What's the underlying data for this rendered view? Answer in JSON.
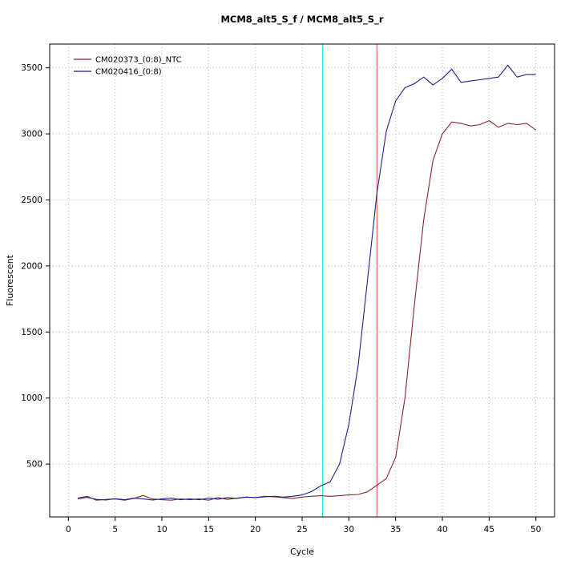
{
  "title": "MCM8_alt5_S_f / MCM8_alt5_S_r",
  "chart_data": {
    "type": "line",
    "title": "MCM8_alt5_S_f / MCM8_alt5_S_r",
    "xlabel": "Cycle",
    "ylabel": "Fluorescent",
    "xlim": [
      -2,
      52
    ],
    "ylim": [
      100,
      3680
    ],
    "x_ticks": [
      0,
      5,
      10,
      15,
      20,
      25,
      30,
      35,
      40,
      45,
      50
    ],
    "y_ticks": [
      500,
      1000,
      1500,
      2000,
      2500,
      3000,
      3500
    ],
    "grid": true,
    "grid_style": "dotted",
    "grid_color": "#bebebe",
    "frame_color": "#000000",
    "legend_position": "top-left",
    "x": [
      1,
      2,
      3,
      4,
      5,
      6,
      7,
      8,
      9,
      10,
      11,
      12,
      13,
      14,
      15,
      16,
      17,
      18,
      19,
      20,
      21,
      22,
      23,
      24,
      25,
      26,
      27,
      28,
      29,
      30,
      31,
      32,
      33,
      34,
      35,
      36,
      37,
      38,
      39,
      40,
      41,
      42,
      43,
      44,
      45,
      46,
      47,
      48,
      49,
      50
    ],
    "series": [
      {
        "name": "CM020373_(0:8)_NTC",
        "color": "#8b2323",
        "values": [
          242,
          256,
          226,
          232,
          236,
          226,
          240,
          262,
          236,
          230,
          226,
          236,
          230,
          236,
          226,
          246,
          232,
          242,
          250,
          246,
          256,
          252,
          246,
          240,
          250,
          256,
          260,
          256,
          260,
          266,
          270,
          290,
          340,
          390,
          550,
          1000,
          1700,
          2350,
          2800,
          3000,
          3090,
          3080,
          3060,
          3070,
          3100,
          3050,
          3080,
          3070,
          3080,
          3030
        ]
      },
      {
        "name": "CM020416_(0:8)",
        "color": "#1f1f8b",
        "values": [
          238,
          248,
          232,
          228,
          238,
          230,
          242,
          236,
          228,
          236,
          242,
          230,
          236,
          230,
          242,
          234,
          246,
          240,
          250,
          246,
          252,
          256,
          250,
          256,
          266,
          292,
          335,
          365,
          500,
          800,
          1250,
          1900,
          2550,
          3020,
          3250,
          3350,
          3380,
          3430,
          3370,
          3420,
          3490,
          3390,
          3400,
          3410,
          3420,
          3430,
          3520,
          3430,
          3450,
          3450
        ]
      }
    ],
    "vlines": [
      {
        "x": 27.2,
        "color": "#00e5ee",
        "name": "crossing-point-line-blue"
      },
      {
        "x": 33.0,
        "color": "#ee6363",
        "name": "crossing-point-line-red"
      }
    ]
  }
}
